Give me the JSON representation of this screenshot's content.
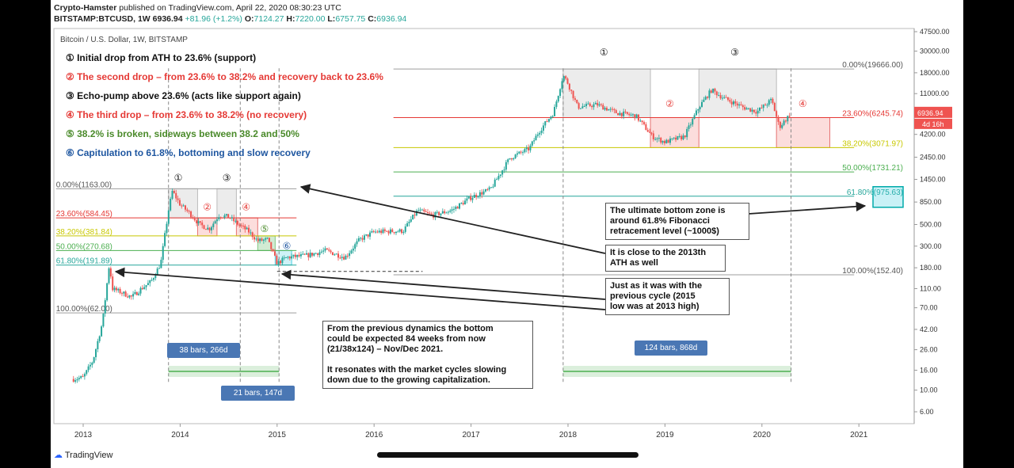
{
  "header": {
    "publisher": "Crypto-Hamster",
    "published_text": "published on TradingView.com, April 22, 2020 08:30:23 UTC",
    "symbol": "BITSTAMP:BTCUSD, 1W",
    "last": "6936.94",
    "change": "+81.96 (+1.2%)",
    "o_label": "O:",
    "o_value": "7124.27",
    "h_label": "H:",
    "h_value": "7220.00",
    "l_label": "L:",
    "l_value": "6757.75",
    "c_label": "C:",
    "c_value": "6936.94"
  },
  "chart_title": "Bitcoin / U.S. Dollar, 1W, BITSTAMP",
  "legend": [
    {
      "text": "① Initial drop from ATH to 23.6% (support)",
      "color": "#111111"
    },
    {
      "text": "② The second drop – from 23.6% to 38.2% and recovery back to 23.6%",
      "color": "#e53935"
    },
    {
      "text": "③ Echo-pump above 23.6% (acts like support again)",
      "color": "#111111"
    },
    {
      "text": "④ The third drop – from 23.6% to 38.2% (no recovery)",
      "color": "#e53935"
    },
    {
      "text": "⑤ 38.2% is broken, sideways between 38.2 and 50%",
      "color": "#4a8a2a"
    },
    {
      "text": "⑥ Capitulation to 61.8%, bottoming and slow recovery",
      "color": "#1e56a0"
    }
  ],
  "notes": {
    "bottom_zone": "The ultimate bottom zone is\naround 61.8% Fibonacci\nretracement level (~1000$)",
    "ath_2013": "It is close to the 2013th\nATH as well",
    "prev_cycle": "Just as it was with the\nprevious cycle (2015\nlow was at 2013 high)",
    "dynamics": "From the previous dynamics the bottom\ncould be expected 84 weeks from now\n(21/38x124) – Nov/Dec 2021.\n\nIt resonates with the market cycles slowing\ndown due to the growing capitalization."
  },
  "bars_labels": {
    "b38": "38 bars, 266d",
    "b21": "21 bars, 147d",
    "b124": "124 bars, 868d"
  },
  "price_tag": {
    "price": "6936.94",
    "countdown": "4d 16h"
  },
  "branding": "TradingView",
  "colors": {
    "up": "#26a69a",
    "down": "#ef5350",
    "fib_red": "#e53935",
    "fib_yellow": "#c8c800",
    "fib_green": "#4caf50",
    "fib_teal": "#26a69a",
    "fib_gray": "#9e9e9e",
    "label_blue": "#4a77b4"
  },
  "chart_data": {
    "type": "candlestick",
    "y_scale": "log",
    "ylim": [
      6,
      47500
    ],
    "x_ticks": [
      "2013",
      "2014",
      "2015",
      "2016",
      "2017",
      "2018",
      "2019",
      "2020",
      "2021"
    ],
    "y_ticks": [
      "47500.00",
      "30000.00",
      "18000.00",
      "11000.00",
      "6936.94",
      "4200.00",
      "2450.00",
      "1450.00",
      "850.00",
      "500.00",
      "300.00",
      "180.00",
      "110.00",
      "70.00",
      "42.00",
      "26.00",
      "16.00",
      "10.00",
      "6.00"
    ],
    "price_path": [
      [
        2012.9,
        13
      ],
      [
        2013.0,
        13.5
      ],
      [
        2013.1,
        20
      ],
      [
        2013.2,
        50
      ],
      [
        2013.27,
        200
      ],
      [
        2013.3,
        110
      ],
      [
        2013.4,
        100
      ],
      [
        2013.5,
        90
      ],
      [
        2013.6,
        110
      ],
      [
        2013.7,
        130
      ],
      [
        2013.8,
        200
      ],
      [
        2013.88,
        700
      ],
      [
        2013.92,
        1100
      ],
      [
        2014.0,
        800
      ],
      [
        2014.1,
        650
      ],
      [
        2014.2,
        500
      ],
      [
        2014.3,
        450
      ],
      [
        2014.4,
        620
      ],
      [
        2014.5,
        600
      ],
      [
        2014.6,
        500
      ],
      [
        2014.7,
        430
      ],
      [
        2014.8,
        340
      ],
      [
        2014.9,
        350
      ],
      [
        2015.0,
        200
      ],
      [
        2015.1,
        230
      ],
      [
        2015.3,
        240
      ],
      [
        2015.5,
        270
      ],
      [
        2015.7,
        230
      ],
      [
        2015.85,
        350
      ],
      [
        2016.0,
        420
      ],
      [
        2016.3,
        430
      ],
      [
        2016.45,
        700
      ],
      [
        2016.6,
        620
      ],
      [
        2016.8,
        700
      ],
      [
        2017.0,
        950
      ],
      [
        2017.2,
        1150
      ],
      [
        2017.4,
        2400
      ],
      [
        2017.6,
        3000
      ],
      [
        2017.7,
        4500
      ],
      [
        2017.85,
        7000
      ],
      [
        2017.95,
        17000
      ],
      [
        2018.0,
        14000
      ],
      [
        2018.1,
        8000
      ],
      [
        2018.3,
        8500
      ],
      [
        2018.5,
        7000
      ],
      [
        2018.7,
        6500
      ],
      [
        2018.87,
        4000
      ],
      [
        2019.0,
        3500
      ],
      [
        2019.2,
        4000
      ],
      [
        2019.35,
        8000
      ],
      [
        2019.48,
        12000
      ],
      [
        2019.6,
        10000
      ],
      [
        2019.8,
        8000
      ],
      [
        2019.95,
        7200
      ],
      [
        2020.1,
        9500
      ],
      [
        2020.18,
        5000
      ],
      [
        2020.3,
        6937
      ]
    ],
    "fib_cycle_2017": {
      "levels": [
        {
          "label": "0.00%(19666.00)",
          "price": 19666.0
        },
        {
          "label": "23.60%(6245.74)",
          "price": 6245.74
        },
        {
          "label": "38.20%(3071.97)",
          "price": 3071.97
        },
        {
          "label": "50.00%(1731.21)",
          "price": 1731.21
        },
        {
          "label": "61.80%(975.63)",
          "price": 975.63
        },
        {
          "label": "100.00%(152.40)",
          "price": 152.4
        }
      ]
    },
    "fib_cycle_2013": {
      "levels": [
        {
          "label": "0.00%(1163.00)",
          "price": 1163.0
        },
        {
          "label": "23.60%(584.45)",
          "price": 584.45
        },
        {
          "label": "38.20%(381.84)",
          "price": 381.84
        },
        {
          "label": "50.00%(270.68)",
          "price": 270.68
        },
        {
          "label": "61.80%(191.89)",
          "price": 191.89
        },
        {
          "label": "100.00%(62.00)",
          "price": 62.0
        }
      ]
    },
    "markers": [
      {
        "text": "①",
        "x": 2013.98,
        "price": 1400
      },
      {
        "text": "②",
        "x": 2014.28,
        "price": 700
      },
      {
        "text": "③",
        "x": 2014.48,
        "price": 1400
      },
      {
        "text": "④",
        "x": 2014.68,
        "price": 700
      },
      {
        "text": "⑤",
        "x": 2014.87,
        "price": 420
      },
      {
        "text": "⑥",
        "x": 2015.1,
        "price": 280
      },
      {
        "text": "①",
        "x": 2018.37,
        "price": 27000
      },
      {
        "text": "②",
        "x": 2019.05,
        "price": 8000
      },
      {
        "text": "③",
        "x": 2019.72,
        "price": 27000
      },
      {
        "text": "④",
        "x": 2020.42,
        "price": 8000
      }
    ]
  }
}
